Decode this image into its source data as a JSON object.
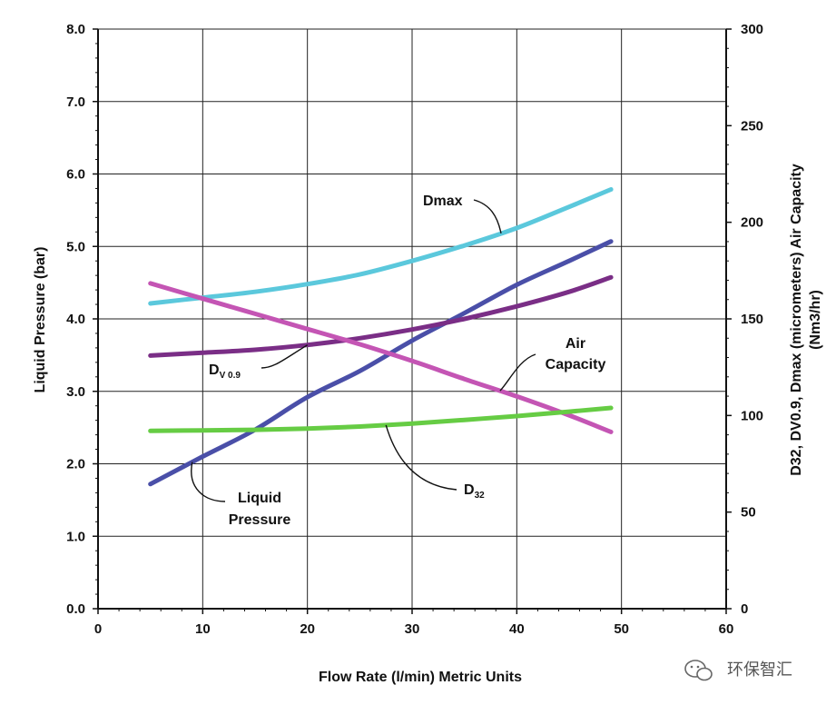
{
  "chart_data": {
    "type": "line",
    "xlabel": "Flow Rate (l/min)  Metric Units",
    "ylabel": "Liquid Pressure (bar)",
    "y2label_line1": "D32, DV0.9, Dmax (micrometers) Air Capacity",
    "y2label_line2": "(Nm3/hr)",
    "xlim": [
      0,
      60
    ],
    "ylim": [
      0,
      8
    ],
    "y2lim": [
      0,
      300
    ],
    "x_ticks": [
      "0",
      "10",
      "20",
      "30",
      "40",
      "50",
      "60"
    ],
    "y_ticks": [
      "0.0",
      "1.0",
      "2.0",
      "3.0",
      "4.0",
      "5.0",
      "6.0",
      "7.0",
      "8.0"
    ],
    "y2_ticks": [
      "0",
      "50",
      "100",
      "150",
      "200",
      "250",
      "300"
    ],
    "grid": true,
    "series": [
      {
        "key": "dmax",
        "color": "#5bc8dc",
        "axis": "right",
        "x": [
          5,
          10,
          15,
          20,
          25,
          30,
          35,
          40,
          45,
          49
        ],
        "values": [
          158,
          161,
          164,
          168,
          173,
          180,
          188,
          197,
          208,
          217
        ]
      },
      {
        "key": "liquid_pressure",
        "color": "#4a4fa8",
        "axis": "left",
        "x": [
          5,
          10,
          15,
          20,
          25,
          30,
          35,
          40,
          45,
          49
        ],
        "values": [
          1.72,
          2.1,
          2.47,
          2.92,
          3.28,
          3.7,
          4.08,
          4.47,
          4.8,
          5.07
        ]
      },
      {
        "key": "dv09",
        "color": "#7a2e86",
        "axis": "right",
        "x": [
          5,
          10,
          15,
          20,
          25,
          30,
          35,
          40,
          45,
          49
        ],
        "values": [
          131,
          132.5,
          134,
          136.5,
          140,
          144.5,
          150,
          156.5,
          164,
          171.5
        ]
      },
      {
        "key": "air_capacity",
        "color": "#c455b4",
        "axis": "left",
        "x": [
          5,
          10,
          15,
          20,
          25,
          30,
          35,
          40,
          45,
          49
        ],
        "values": [
          4.49,
          4.28,
          4.07,
          3.86,
          3.65,
          3.42,
          3.17,
          2.93,
          2.67,
          2.44
        ]
      },
      {
        "key": "d32",
        "color": "#66cc44",
        "axis": "right",
        "x": [
          5,
          10,
          15,
          20,
          25,
          30,
          35,
          40,
          45,
          49
        ],
        "values": [
          92,
          92.3,
          92.6,
          93.2,
          94.3,
          95.8,
          97.7,
          99.7,
          102,
          103.9
        ]
      }
    ],
    "annotations": [
      {
        "key": "dmax",
        "text": "Dmax"
      },
      {
        "key": "dv09",
        "text": "D",
        "sub": "V 0.9"
      },
      {
        "key": "air_capacity",
        "line1": "Air",
        "line2": "Capacity"
      },
      {
        "key": "liquid_pressure",
        "line1": "Liquid",
        "line2": "Pressure"
      },
      {
        "key": "d32",
        "text": "D",
        "sub": "32"
      }
    ]
  },
  "watermark": {
    "text": "环保智汇",
    "icon": "wechat-icon"
  }
}
